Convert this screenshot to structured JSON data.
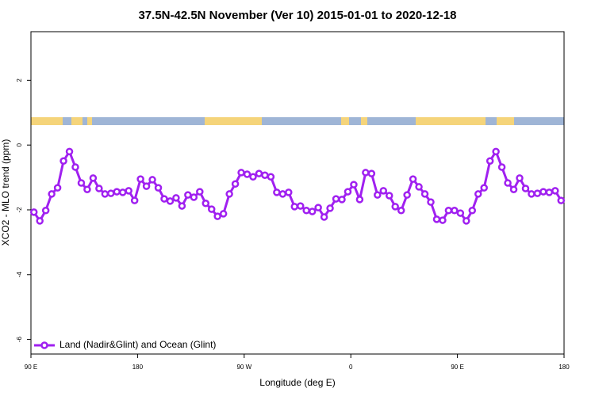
{
  "chart_data": {
    "type": "line",
    "title": "37.5N-42.5N November (Ver 10)   2015-01-01 to 2020-12-18",
    "xlabel": "Longitude (deg E)",
    "ylabel": "XCO2 - MLO trend (ppm)",
    "xlim": [
      90,
      540
    ],
    "ylim": [
      -6.45,
      3.5
    ],
    "xticks": [
      {
        "value": 90,
        "label": "90 E"
      },
      180,
      {
        "value": 270,
        "label": "90 W"
      },
      {
        "value": 360,
        "label": "0"
      },
      {
        "value": 450,
        "label": "90 E"
      },
      {
        "value": 540,
        "label": "180"
      }
    ],
    "yticks": [
      2,
      0,
      -2,
      -4,
      -6
    ],
    "legend": "bottom-left",
    "x": [
      92.5,
      97.5,
      102.5,
      107.5,
      112.5,
      117.5,
      122.5,
      127.5,
      132.5,
      137.5,
      142.5,
      147.5,
      152.5,
      157.5,
      162.5,
      167.5,
      172.5,
      177.5,
      182.5,
      187.5,
      192.5,
      197.5,
      202.5,
      207.5,
      212.5,
      217.5,
      222.5,
      227.5,
      232.5,
      237.5,
      242.5,
      247.5,
      252.5,
      257.5,
      262.5,
      267.5,
      272.5,
      277.5,
      282.5,
      287.5,
      292.5,
      297.5,
      302.5,
      307.5,
      312.5,
      317.5,
      322.5,
      327.5,
      332.5,
      337.5,
      342.5,
      347.5,
      352.5,
      357.5,
      362.5,
      367.5,
      372.5,
      377.5,
      382.5,
      387.5,
      392.5,
      397.5,
      402.5,
      407.5,
      412.5,
      417.5,
      422.5,
      427.5,
      432.5,
      437.5,
      442.5,
      447.5,
      452.5,
      457.5,
      462.5,
      467.5,
      472.5,
      477.5,
      482.5,
      487.5,
      492.5,
      497.5,
      502.5,
      507.5,
      512.5,
      517.5,
      522.5,
      527.5,
      532.5,
      537.5
    ],
    "series": [
      {
        "name": "Land (Nadir&Glint) and Ocean (Glint)",
        "color": "#a020f0",
        "values": [
          -2.07,
          -2.34,
          -2.02,
          -1.51,
          -1.32,
          -0.49,
          -0.2,
          -0.68,
          -1.17,
          -1.37,
          -1.02,
          -1.34,
          -1.51,
          -1.49,
          -1.44,
          -1.46,
          -1.41,
          -1.71,
          -1.05,
          -1.27,
          -1.07,
          -1.32,
          -1.66,
          -1.73,
          -1.63,
          -1.88,
          -1.54,
          -1.61,
          -1.44,
          -1.8,
          -1.98,
          -2.2,
          -2.12,
          -1.51,
          -1.2,
          -0.85,
          -0.9,
          -0.98,
          -0.88,
          -0.93,
          -0.98,
          -1.46,
          -1.51,
          -1.46,
          -1.9,
          -1.88,
          -2.02,
          -2.05,
          -1.93,
          -2.22,
          -1.95,
          -1.66,
          -1.68,
          -1.44,
          -1.22,
          -1.68,
          -0.85,
          -0.88,
          -1.54,
          -1.41,
          -1.56,
          -1.9,
          -2.02,
          -1.54,
          -1.05,
          -1.29,
          -1.51,
          -1.76,
          -2.29,
          -2.32,
          -2.02,
          -2.02,
          -2.1,
          -2.34,
          -2.02,
          -1.51,
          -1.32,
          -0.49,
          -0.2,
          -0.68,
          -1.17,
          -1.37,
          -1.02,
          -1.34,
          -1.51,
          -1.49,
          -1.44,
          -1.46,
          -1.41,
          -1.71
        ]
      }
    ]
  }
}
